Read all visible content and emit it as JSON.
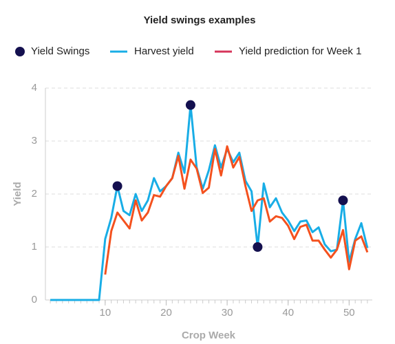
{
  "chart_data": {
    "type": "line",
    "title": "Yield swings examples",
    "x_label": "Crop Week",
    "y_label": "Yield",
    "x": [
      1,
      2,
      3,
      4,
      5,
      6,
      7,
      8,
      9,
      10,
      11,
      12,
      13,
      14,
      15,
      16,
      17,
      18,
      19,
      20,
      21,
      22,
      23,
      24,
      25,
      26,
      27,
      28,
      29,
      30,
      31,
      32,
      33,
      34,
      35,
      36,
      37,
      38,
      39,
      40,
      41,
      42,
      43,
      44,
      45,
      46,
      47,
      48,
      49,
      50,
      51,
      52,
      53
    ],
    "series": [
      {
        "name": "Yield Swings",
        "type": "scatter",
        "color": "#14104f",
        "x": [
          12,
          24,
          35,
          49
        ],
        "values": [
          2.15,
          3.68,
          1.0,
          1.88
        ]
      },
      {
        "name": "Harvest yield",
        "type": "line",
        "color": "#18ade6",
        "values": [
          0,
          0,
          0,
          0,
          0,
          0,
          0,
          0,
          0,
          1.15,
          1.55,
          2.15,
          1.68,
          1.6,
          2.0,
          1.68,
          1.88,
          2.3,
          2.05,
          2.15,
          2.3,
          2.78,
          2.4,
          3.68,
          2.5,
          2.1,
          2.45,
          2.92,
          2.5,
          2.85,
          2.6,
          2.78,
          2.25,
          2.05,
          1.0,
          2.2,
          1.75,
          1.92,
          1.65,
          1.5,
          1.3,
          1.48,
          1.5,
          1.28,
          1.37,
          1.05,
          0.92,
          0.95,
          1.88,
          0.72,
          1.15,
          1.45,
          0.98
        ]
      },
      {
        "name": "Yield prediction for Week 1",
        "type": "line",
        "color": "#f4511e",
        "legend_color": "#d6345a",
        "values": [
          null,
          null,
          null,
          null,
          null,
          null,
          null,
          null,
          null,
          0.48,
          1.3,
          1.65,
          1.5,
          1.35,
          1.88,
          1.5,
          1.65,
          1.98,
          1.95,
          2.15,
          2.3,
          2.72,
          2.1,
          2.65,
          2.48,
          2.02,
          2.12,
          2.85,
          2.35,
          2.9,
          2.5,
          2.7,
          2.15,
          1.68,
          1.88,
          1.92,
          1.48,
          1.58,
          1.55,
          1.4,
          1.15,
          1.38,
          1.42,
          1.12,
          1.12,
          0.95,
          0.8,
          0.95,
          1.32,
          0.58,
          1.12,
          1.2,
          0.9
        ]
      }
    ],
    "xlim": [
      0.2,
      53.8
    ],
    "xticks": [
      10,
      20,
      30,
      40,
      50
    ],
    "ylim": [
      0,
      4
    ],
    "yticks": [
      0,
      1,
      2,
      3,
      4
    ],
    "grid": true,
    "legend": "top"
  }
}
